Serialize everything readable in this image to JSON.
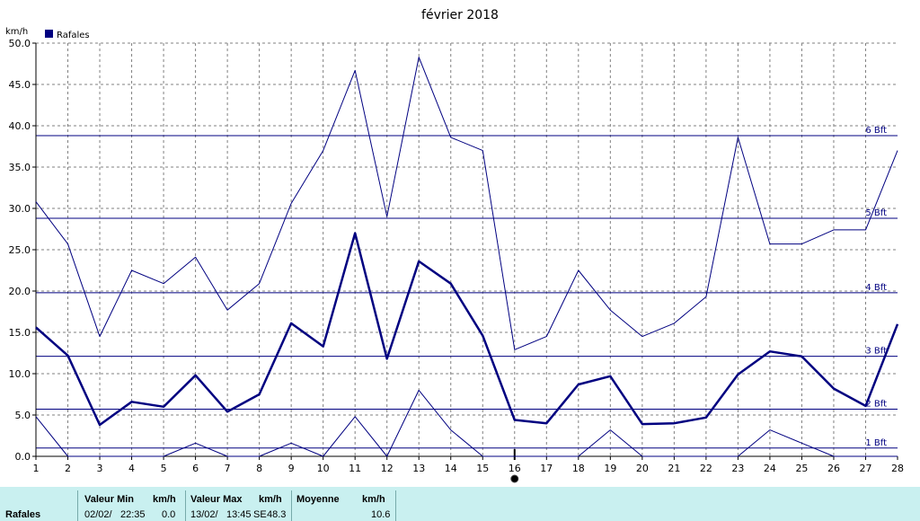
{
  "chart_data": {
    "type": "line",
    "title": "février 2018",
    "ylabel": "km/h",
    "legend": "Rafales",
    "legend_color": "#000080",
    "x": [
      1,
      2,
      3,
      4,
      5,
      6,
      7,
      8,
      9,
      10,
      11,
      12,
      13,
      14,
      15,
      16,
      17,
      18,
      19,
      20,
      21,
      22,
      23,
      24,
      25,
      26,
      27,
      28
    ],
    "ylim": [
      0,
      50
    ],
    "yticks": [
      "0.0",
      "5.0",
      "10.0",
      "15.0",
      "20.0",
      "25.0",
      "30.0",
      "35.0",
      "40.0",
      "45.0",
      "50.0"
    ],
    "xticks": [
      "1",
      "2",
      "3",
      "4",
      "5",
      "6",
      "7",
      "8",
      "9",
      "10",
      "11",
      "12",
      "13",
      "14",
      "15",
      "16",
      "17",
      "18",
      "19",
      "20",
      "21",
      "22",
      "23",
      "24",
      "25",
      "26",
      "27",
      "28"
    ],
    "grid": true,
    "series": [
      {
        "role": "max",
        "values": [
          30.8,
          25.7,
          14.5,
          22.5,
          20.9,
          24.1,
          17.7,
          20.9,
          30.6,
          37.0,
          46.7,
          29.0,
          48.3,
          38.6,
          37.0,
          12.9,
          14.5,
          22.5,
          17.7,
          14.5,
          16.1,
          19.3,
          38.6,
          25.7,
          25.7,
          27.4,
          27.4,
          37.0
        ]
      },
      {
        "role": "avg",
        "values": [
          15.6,
          12.2,
          3.8,
          6.6,
          6.0,
          9.8,
          5.4,
          7.5,
          16.1,
          13.3,
          27.0,
          11.8,
          23.6,
          20.9,
          14.6,
          4.4,
          4.0,
          8.7,
          9.7,
          3.9,
          4.0,
          4.7,
          9.9,
          12.7,
          12.1,
          8.2,
          6.1,
          16.0
        ]
      },
      {
        "role": "min",
        "values": [
          4.8,
          0.0,
          0.0,
          0.0,
          0.0,
          1.6,
          0.0,
          0.0,
          1.6,
          0.0,
          4.8,
          0.0,
          8.0,
          3.2,
          0.0,
          0.0,
          0.0,
          0.0,
          3.2,
          0.0,
          0.0,
          0.0,
          0.0,
          3.2,
          1.6,
          0.0,
          0.0,
          0.0
        ]
      }
    ],
    "reference_lines": [
      {
        "label": "1 Bft",
        "value": 1.0
      },
      {
        "label": "2 Bft",
        "value": 5.7
      },
      {
        "label": "3 Bft",
        "value": 12.1
      },
      {
        "label": "4 Bft",
        "value": 19.8
      },
      {
        "label": "5 Bft",
        "value": 28.8
      },
      {
        "label": "6 Bft",
        "value": 38.8
      }
    ],
    "current_day": 16,
    "line_color": "#000080"
  },
  "footer": {
    "row_label": "Rafales",
    "min_header": "Valeur Min",
    "unit": "km/h",
    "max_header": "Valeur Max",
    "avg_header": "Moyenne",
    "min_date": "02/02/",
    "min_time": "22:35",
    "min_value": "0.0",
    "max_date": "13/02/",
    "max_time": "13:45",
    "max_dir": "SE",
    "max_value": "48.3",
    "avg_value": "10.6"
  }
}
